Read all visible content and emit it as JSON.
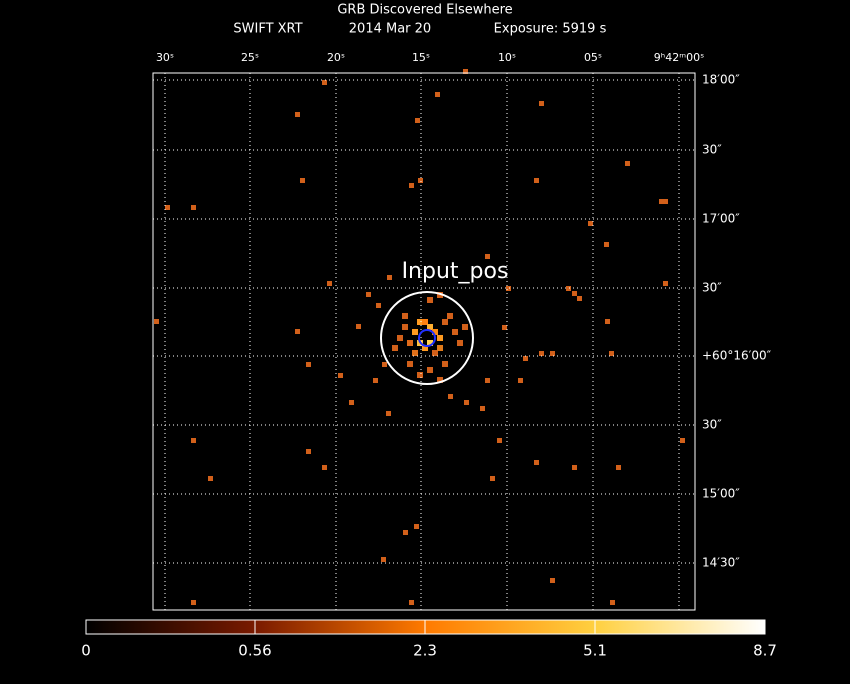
{
  "header": {
    "title": "GRB Discovered Elsewhere",
    "instrument": "SWIFT XRT",
    "date": "2014 Mar 20",
    "exposure": "Exposure: 5919 s"
  },
  "axes": {
    "ra_labels": [
      "30ˢ",
      "25ˢ",
      "20ˢ",
      "15ˢ",
      "10ˢ",
      "05ˢ",
      "9ʰ42ᵐ00ˢ"
    ],
    "dec_labels": [
      "18′00″",
      "30″",
      "17′00″",
      "30″",
      "+60°16′00″",
      "30″",
      "15′00″",
      "14′30″"
    ]
  },
  "annotation": "Input_pos",
  "colorbar": {
    "labels": [
      "0",
      "0.56",
      "2.3",
      "5.1",
      "8.7"
    ]
  }
}
